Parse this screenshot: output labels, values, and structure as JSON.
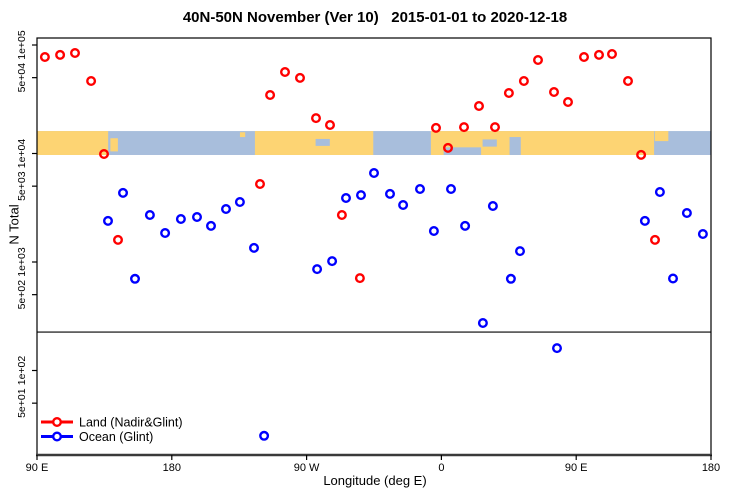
{
  "chart_data": {
    "type": "scatter",
    "title": "40N-50N November (Ver 10)   2015-01-01 to 2020-12-18",
    "xlabel": "Longitude (deg E)",
    "ylabel": "N Total",
    "x_axis": {
      "start_lon": 90,
      "end_lon": 540,
      "ticks": [
        {
          "lon": 90,
          "label": "90 E"
        },
        {
          "lon": 180,
          "label": "180"
        },
        {
          "lon": 270,
          "label": "90 W"
        },
        {
          "lon": 360,
          "label": "0"
        },
        {
          "lon": 450,
          "label": "90 E"
        },
        {
          "lon": 540,
          "label": "180"
        }
      ]
    },
    "y_axis": {
      "scale": "log",
      "ticks": [
        {
          "value": 100000,
          "label": "1e+05"
        },
        {
          "value": 50000,
          "label": "5e+04"
        },
        {
          "value": 10000,
          "label": "1e+04"
        },
        {
          "value": 5000,
          "label": "5e+03"
        },
        {
          "value": 1000,
          "label": "1e+03"
        },
        {
          "value": 500,
          "label": "5e+02"
        },
        {
          "value": 100,
          "label": "1e+02"
        },
        {
          "value": 50,
          "label": "5e+01"
        }
      ]
    },
    "threshold_value": 226,
    "map_band": {
      "value_top": 16100,
      "value_bottom": 9690,
      "ocean_color": "#a8bedc",
      "land_color": "#fdd473",
      "patches": [
        {
          "kind": "land",
          "lon0": 90,
          "lon1": 137.5,
          "y0": 0,
          "y1": 1
        },
        {
          "kind": "land",
          "lon0": 139,
          "lon1": 144,
          "y0": 0.3,
          "y1": 0.85
        },
        {
          "kind": "land",
          "lon0": 225.5,
          "lon1": 229,
          "y0": 0.05,
          "y1": 0.25
        },
        {
          "kind": "land",
          "lon0": 235.5,
          "lon1": 314.5,
          "y0": 0,
          "y1": 1
        },
        {
          "kind": "water",
          "lon0": 276,
          "lon1": 285.5,
          "y0": 0.33,
          "y1": 0.62
        },
        {
          "kind": "land",
          "lon0": 353,
          "lon1": 502,
          "y0": 0,
          "y1": 1
        },
        {
          "kind": "water",
          "lon0": 361.5,
          "lon1": 386.5,
          "y0": 0.68,
          "y1": 1
        },
        {
          "kind": "water",
          "lon0": 387.5,
          "lon1": 397,
          "y0": 0.35,
          "y1": 0.65
        },
        {
          "kind": "water",
          "lon0": 405.5,
          "lon1": 413,
          "y0": 0.25,
          "y1": 1
        },
        {
          "kind": "land",
          "lon0": 502.5,
          "lon1": 511.5,
          "y0": 0,
          "y1": 0.42
        }
      ]
    },
    "series": [
      {
        "key": "land",
        "name": "Land (Nadir&Glint)",
        "color": "#ff0000",
        "points": [
          [
            95.3,
            77500
          ],
          [
            105.4,
            81000
          ],
          [
            115.4,
            84400
          ],
          [
            126.1,
            46600
          ],
          [
            134.7,
            9900
          ],
          [
            144.1,
            1600
          ],
          [
            238.9,
            5230
          ],
          [
            245.6,
            34600
          ],
          [
            255.6,
            56400
          ],
          [
            265.6,
            49700
          ],
          [
            276.3,
            21200
          ],
          [
            285.6,
            18300
          ],
          [
            293.6,
            2710
          ],
          [
            305.6,
            711
          ],
          [
            356.4,
            17200
          ],
          [
            364.4,
            11250
          ],
          [
            375.1,
            17500
          ],
          [
            385.1,
            27400
          ],
          [
            395.8,
            17500
          ],
          [
            405.1,
            36100
          ],
          [
            415.1,
            46600
          ],
          [
            424.5,
            72800
          ],
          [
            435.2,
            36900
          ],
          [
            444.5,
            29800
          ],
          [
            455.2,
            77500
          ],
          [
            465.2,
            81000
          ],
          [
            473.9,
            82600
          ],
          [
            484.6,
            46600
          ],
          [
            493.3,
            9700
          ],
          [
            502.6,
            1600
          ]
        ]
      },
      {
        "key": "ocean",
        "name": "Ocean (Glint)",
        "color": "#0000ff",
        "points": [
          [
            137.4,
            2390
          ],
          [
            147.4,
            4330
          ],
          [
            155.4,
            700
          ],
          [
            165.4,
            2710
          ],
          [
            175.5,
            1850
          ],
          [
            186.1,
            2490
          ],
          [
            196.8,
            2600
          ],
          [
            206.2,
            2150
          ],
          [
            216.2,
            3080
          ],
          [
            225.5,
            3570
          ],
          [
            234.9,
            1350
          ],
          [
            241.6,
            25
          ],
          [
            277.0,
            861
          ],
          [
            287.0,
            1020
          ],
          [
            296.3,
            3890
          ],
          [
            306.3,
            4140
          ],
          [
            315.0,
            6610
          ],
          [
            325.7,
            4240
          ],
          [
            334.4,
            3350
          ],
          [
            345.7,
            4710
          ],
          [
            355.0,
            1930
          ],
          [
            366.4,
            4710
          ],
          [
            375.8,
            2150
          ],
          [
            387.7,
            274
          ],
          [
            394.4,
            3280
          ],
          [
            406.4,
            700
          ],
          [
            412.5,
            1260
          ],
          [
            437.2,
            161
          ],
          [
            495.9,
            2390
          ],
          [
            505.9,
            4420
          ],
          [
            514.6,
            705
          ],
          [
            523.9,
            2830
          ],
          [
            534.6,
            1810
          ]
        ]
      }
    ]
  }
}
